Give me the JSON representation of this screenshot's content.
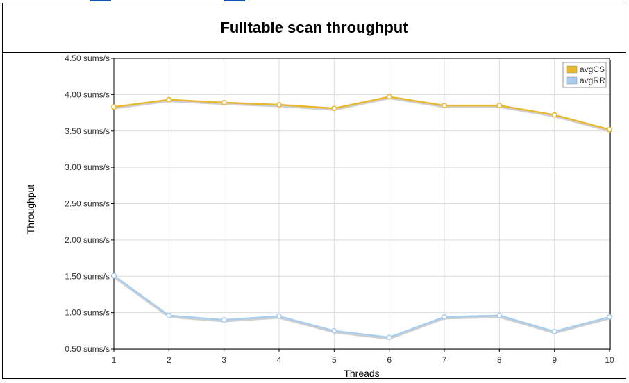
{
  "chart_data": {
    "type": "line",
    "title": "Fulltable scan throughput",
    "xlabel": "Threads",
    "ylabel": "Throughput",
    "x": [
      1,
      2,
      3,
      4,
      5,
      6,
      7,
      8,
      9,
      10
    ],
    "xlim": [
      1,
      10
    ],
    "ylim": [
      0.5,
      4.5
    ],
    "y_ticks": [
      "0.50 sums/s",
      "1.00 sums/s",
      "1.50 sums/s",
      "2.00 sums/s",
      "2.50 sums/s",
      "3.00 sums/s",
      "3.50 sums/s",
      "4.00 sums/s",
      "4.50 sums/s"
    ],
    "x_ticks": [
      "1",
      "2",
      "3",
      "4",
      "5",
      "6",
      "7",
      "8",
      "9",
      "10"
    ],
    "grid": true,
    "legend_position": "top-right",
    "series": [
      {
        "name": "avgCS",
        "color": "#e8b830",
        "values": [
          3.83,
          3.93,
          3.89,
          3.86,
          3.81,
          3.97,
          3.85,
          3.85,
          3.72,
          3.52
        ]
      },
      {
        "name": "avgRR",
        "color": "#a9cdef",
        "values": [
          1.51,
          0.96,
          0.9,
          0.95,
          0.75,
          0.66,
          0.94,
          0.96,
          0.74,
          0.94
        ]
      }
    ]
  }
}
